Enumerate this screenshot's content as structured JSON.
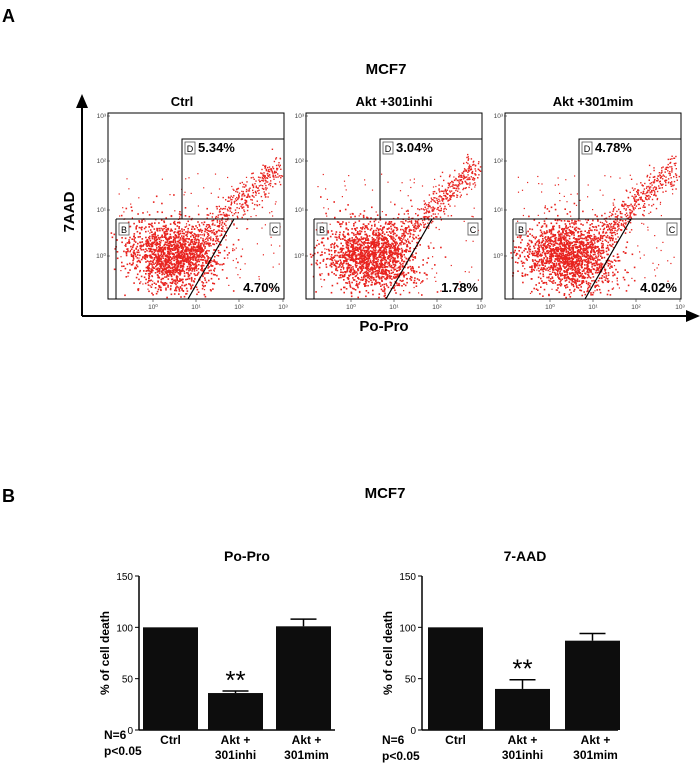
{
  "panel_a": {
    "letter": "A",
    "title": "MCF7",
    "y_label": "7AAD",
    "x_label": "Po-Pro",
    "tick_labels": [
      "10⁰",
      "10¹",
      "10²",
      "10³"
    ],
    "quadrant_labels": [
      "B",
      "C",
      "D"
    ],
    "plots": [
      {
        "name": "Ctrl",
        "q_d_percent": "5.34%",
        "q_c_percent": "4.70%"
      },
      {
        "name": "Akt +301inhi",
        "q_d_percent": "3.04%",
        "q_c_percent": "1.78%"
      },
      {
        "name": "Akt +301mim",
        "q_d_percent": "4.78%",
        "q_c_percent": "4.02%"
      }
    ],
    "dot_color": "#e8231f"
  },
  "panel_b": {
    "letter": "B",
    "title": "MCF7",
    "footnote_n": "N=6",
    "footnote_p": "p<0.05"
  },
  "chart_data": [
    {
      "type": "bar",
      "title": "Po-Pro",
      "ylabel": "% of cell death",
      "ylim": [
        0,
        150
      ],
      "yticks": [
        0,
        50,
        100,
        150
      ],
      "categories": [
        [
          "Ctrl"
        ],
        [
          "Akt +",
          "301inhi"
        ],
        [
          "Akt +",
          "301mim"
        ]
      ],
      "values": [
        100,
        36,
        101
      ],
      "errors": [
        0,
        2,
        7
      ],
      "annotations": [
        "",
        "**",
        ""
      ],
      "bar_color": "#0d0d0d"
    },
    {
      "type": "bar",
      "title": "7-AAD",
      "ylabel": "% of cell death",
      "ylim": [
        0,
        150
      ],
      "yticks": [
        0,
        50,
        100,
        150
      ],
      "categories": [
        [
          "Ctrl"
        ],
        [
          "Akt +",
          "301inhi"
        ],
        [
          "Akt +",
          "301mim"
        ]
      ],
      "values": [
        100,
        40,
        87
      ],
      "errors": [
        0,
        9,
        7
      ],
      "annotations": [
        "",
        "**",
        ""
      ],
      "bar_color": "#0d0d0d"
    }
  ]
}
